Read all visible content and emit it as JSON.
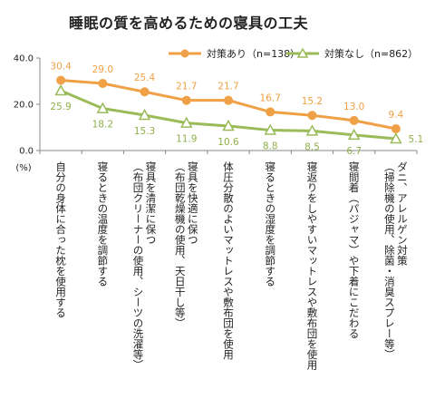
{
  "chart_data": {
    "type": "line",
    "title": "睡眠の質を高めるための寝具の工夫",
    "yunit": "(%)",
    "ylim": [
      0,
      40
    ],
    "yticks": [
      "0.0",
      "20.0",
      "40.0"
    ],
    "categories": [
      [
        "自分の身体に合った枕を使用する"
      ],
      [
        "寝るときの温度を調節する"
      ],
      [
        "寝具を清潔に保つ",
        "（布団クリーナーの使用、シーツの洗濯等）"
      ],
      [
        "寝具を快適に保つ",
        "（布団乾燥機の使用、天日干し等）"
      ],
      [
        "体圧分散のよいマットレスや敷布団を使用"
      ],
      [
        "寝るときの湿度を調節する"
      ],
      [
        "寝返りをしやすいマットレスや敷布団を使用"
      ],
      [
        "寝間着（パジャマ）や下着にこだわる"
      ],
      [
        "ダニ、アレルゲン対策",
        "（掃除機の使用、除菌・消臭スプレー等）"
      ]
    ],
    "series": [
      {
        "name": "対策あり（n=138）",
        "values": [
          30.4,
          29.0,
          25.4,
          21.7,
          21.7,
          16.7,
          15.2,
          13.0,
          9.4
        ],
        "labels": [
          "30.4",
          "29.0",
          "25.4",
          "21.7",
          "21.7",
          "16.7",
          "15.2",
          "13.0",
          "9.4"
        ],
        "color": "#f0a046",
        "marker": "circle"
      },
      {
        "name": "対策なし（n=862）",
        "values": [
          25.9,
          18.2,
          15.3,
          11.9,
          10.6,
          8.8,
          8.5,
          6.7,
          5.1
        ],
        "labels": [
          "25.9",
          "18.2",
          "15.3",
          "11.9",
          "10.6",
          "8.8",
          "8.5",
          "6.7",
          "5.1"
        ],
        "color": "#9bbb59",
        "marker": "triangle"
      }
    ],
    "legend": "top-right"
  }
}
